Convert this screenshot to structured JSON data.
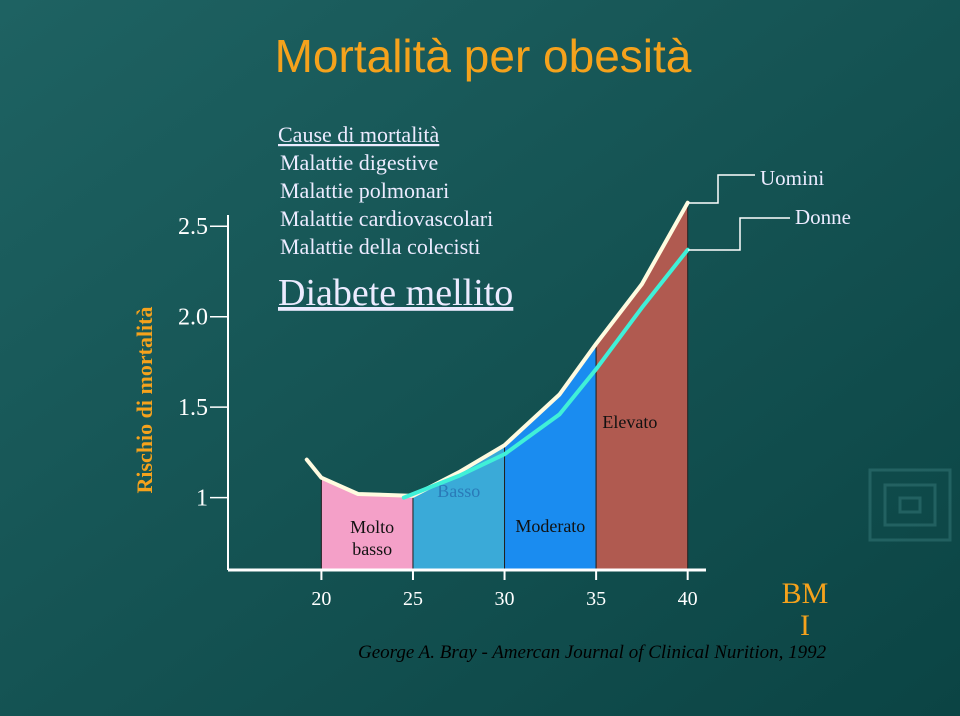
{
  "chart_data": {
    "type": "area",
    "title": "Mortalità per obesità",
    "ylabel": "Rischio di mortalità",
    "xlabel_lines": [
      "BM",
      "I"
    ],
    "list_heading": "Cause di mortalità",
    "list_items": [
      "Malattie digestive",
      "Malattie polmonari",
      "Malattie cardiovascolari",
      "Malattie della colecisti"
    ],
    "highlight_item": "Diabete mellito",
    "citation": "George A. Bray - Amercan Journal of Clinical  Nurition, 1992",
    "xlim": [
      14.9,
      41
    ],
    "ylim": [
      0.6,
      2.75
    ],
    "xticks": [
      20,
      25,
      30,
      35,
      40
    ],
    "yticks": [
      1,
      1.5,
      {
        "value": 2,
        "label": "2.0"
      },
      2.5
    ],
    "zones": [
      {
        "label": "Molto\nbasso",
        "from": 20,
        "to": 25,
        "color": "#f4a0c8",
        "text_color": "#111111"
      },
      {
        "label": "Basso",
        "from": 25,
        "to": 30,
        "color": "#3aaad8",
        "text_color": "#2a7ab8"
      },
      {
        "label": "Moderato",
        "from": 30,
        "to": 35,
        "color": "#1a8cf0",
        "text_color": "#111111"
      },
      {
        "label": "Elevato",
        "from": 35,
        "to": 40,
        "color": "#b05a50",
        "text_color": "#111111"
      }
    ],
    "series": [
      {
        "name": "Uomini",
        "color": "#fffbe0",
        "x": [
          19.2,
          20,
          22,
          25,
          27.5,
          30,
          33,
          35,
          37.5,
          40
        ],
        "values": [
          1.21,
          1.11,
          1.02,
          1.01,
          1.14,
          1.29,
          1.57,
          1.85,
          2.18,
          2.63
        ]
      },
      {
        "name": "Donne",
        "color": "#40f0d8",
        "x": [
          24.5,
          27.5,
          30,
          33,
          35,
          37.5,
          40
        ],
        "values": [
          1.0,
          1.12,
          1.24,
          1.46,
          1.71,
          2.05,
          2.37
        ]
      }
    ]
  }
}
